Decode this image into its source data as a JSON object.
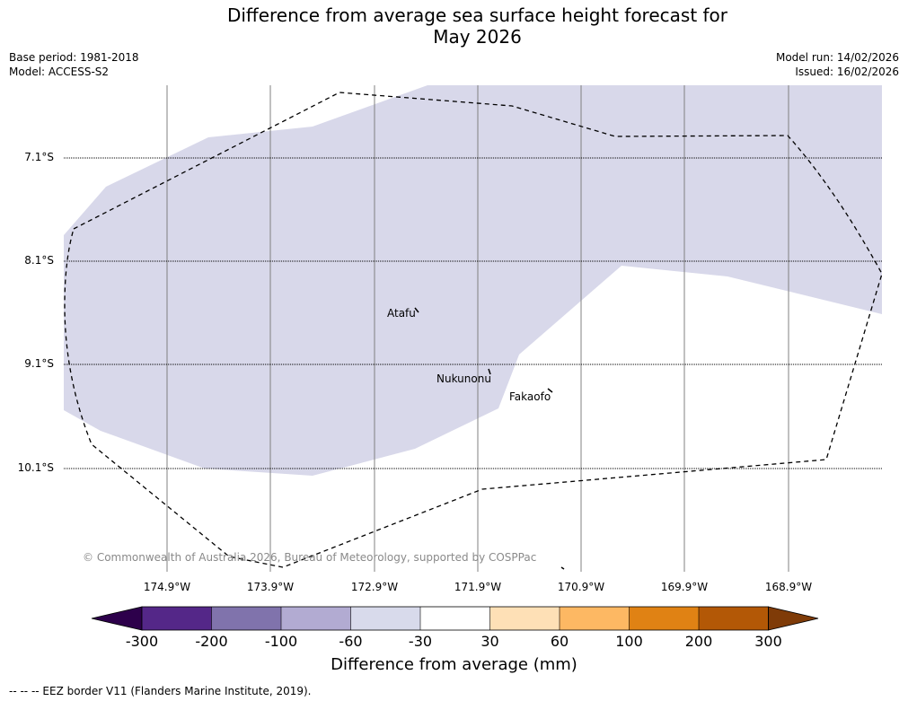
{
  "title": {
    "line1": "Difference from average sea surface height forecast for",
    "line2": "May 2026"
  },
  "meta": {
    "base_period": "Base period: 1981-2018",
    "model": "Model: ACCESS-S2",
    "model_run": "Model run: 14/02/2026",
    "issued": "Issued: 16/02/2026"
  },
  "map": {
    "lat_labels": [
      "7.1°S",
      "8.1°S",
      "9.1°S",
      "10.1°S"
    ],
    "lon_labels": [
      "174.9°W",
      "173.9°W",
      "172.9°W",
      "171.9°W",
      "170.9°W",
      "169.9°W",
      "168.9°W"
    ],
    "places": [
      "Atafu",
      "Nukunonu",
      "Fakaofo"
    ],
    "copyright": "© Commonwealth of Australia 2026, Bureau of Meteorology, supported by COSPPac",
    "colors": {
      "anomaly_fill": "#d8d8ea",
      "gridline": "#808080",
      "eez": "#000000"
    }
  },
  "colorbar": {
    "title": "Difference from average (mm)",
    "ticks": [
      "-300",
      "-200",
      "-100",
      "-60",
      "-30",
      "30",
      "60",
      "100",
      "200",
      "300"
    ],
    "colors": [
      "#2d004b",
      "#542788",
      "#8073ac",
      "#b2abd2",
      "#d8daeb",
      "#ffffff",
      "#fee0b6",
      "#fdb863",
      "#e08214",
      "#b35806",
      "#7f3b08"
    ]
  },
  "footer": "--  --  -- EEZ border V11 (Flanders Marine Institute, 2019)."
}
